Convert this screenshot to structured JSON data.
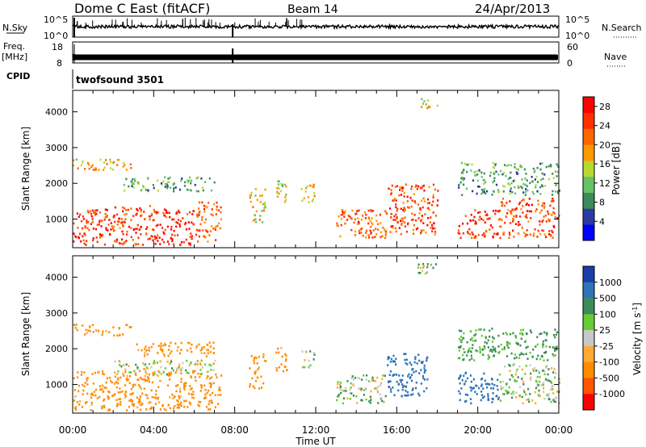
{
  "header": {
    "station": "Dome C East (fitACF)",
    "beam": "Beam 14",
    "date": "24/Apr/2013"
  },
  "ancillary": {
    "nsky_label": "N.Sky",
    "nsky_ticks": [
      "10^5",
      "10^0"
    ],
    "nsearch_label": "N.Search",
    "nsearch_ticks": [
      "10^5",
      "10^0"
    ],
    "freq_label_1": "Freq.",
    "freq_label_2": "[MHz]",
    "freq_ticks": [
      "18",
      "8"
    ],
    "nave_label": "Nave",
    "nave_ticks": [
      "60",
      "0"
    ],
    "cpid_label": "CPID",
    "cpid_value": "twofsound 3501"
  },
  "colors": {
    "power_scale": [
      "#0000ff",
      "#2a3aa0",
      "#3d8a5a",
      "#66c266",
      "#b8d830",
      "#ff9900",
      "#ff6600",
      "#ff3000",
      "#ff0000"
    ],
    "velocity_scale": [
      "#1a3da8",
      "#2f73b8",
      "#3d8a5a",
      "#66cc33",
      "#c8c8c8",
      "#ffaa33",
      "#ff8c00",
      "#ff5500",
      "#ff0000"
    ]
  },
  "chart_data": [
    {
      "type": "heatmap",
      "panel": "power",
      "ylabel": "Slant Range [km]",
      "xlabel": "",
      "yticks": [
        "1000",
        "2000",
        "3000",
        "4000"
      ],
      "ylim": [
        200,
        4600
      ],
      "colorbar_label": "Power [dB]",
      "colorbar_ticks": [
        "4",
        "8",
        "12",
        "16",
        "20",
        "24",
        "28"
      ],
      "colorbar_range": [
        0,
        30
      ],
      "patches": [
        {
          "t0": 0.0,
          "t1": 2.0,
          "r0": 300,
          "r1": 1300,
          "value": 26
        },
        {
          "t0": 2.0,
          "t1": 4.0,
          "r0": 300,
          "r1": 1400,
          "value": 24
        },
        {
          "t0": 4.0,
          "t1": 6.0,
          "r0": 300,
          "r1": 1300,
          "value": 27
        },
        {
          "t0": 6.0,
          "t1": 7.3,
          "r0": 400,
          "r1": 1500,
          "value": 22
        },
        {
          "t0": 0.0,
          "t1": 3.0,
          "r0": 2400,
          "r1": 2700,
          "value": 18
        },
        {
          "t0": 2.5,
          "t1": 7.0,
          "r0": 1800,
          "r1": 2200,
          "value": 10
        },
        {
          "t0": 8.7,
          "t1": 9.5,
          "r0": 900,
          "r1": 1900,
          "value": 16
        },
        {
          "t0": 10.0,
          "t1": 10.6,
          "r0": 1400,
          "r1": 2100,
          "value": 14
        },
        {
          "t0": 11.2,
          "t1": 11.9,
          "r0": 1500,
          "r1": 2000,
          "value": 18
        },
        {
          "t0": 13.0,
          "t1": 15.5,
          "r0": 500,
          "r1": 1300,
          "value": 22
        },
        {
          "t0": 15.5,
          "t1": 18.0,
          "r0": 600,
          "r1": 2000,
          "value": 24
        },
        {
          "t0": 17.0,
          "t1": 18.0,
          "r0": 4100,
          "r1": 4400,
          "value": 16
        },
        {
          "t0": 19.0,
          "t1": 21.0,
          "r0": 500,
          "r1": 1300,
          "value": 26
        },
        {
          "t0": 21.0,
          "t1": 24.0,
          "r0": 500,
          "r1": 1600,
          "value": 24
        },
        {
          "t0": 19.0,
          "t1": 24.0,
          "r0": 1700,
          "r1": 2600,
          "value": 10
        }
      ]
    },
    {
      "type": "heatmap",
      "panel": "velocity",
      "ylabel": "Slant Range [km]",
      "xlabel": "Time UT",
      "xticks": [
        "00:00",
        "04:00",
        "08:00",
        "12:00",
        "16:00",
        "20:00",
        "00:00"
      ],
      "yticks": [
        "1000",
        "2000",
        "3000",
        "4000"
      ],
      "ylim": [
        200,
        4600
      ],
      "colorbar_label": "Velocity [m s^-1]",
      "colorbar_ticks": [
        "1000",
        "500",
        "100",
        "25",
        "-25",
        "-100",
        "-500",
        "-1000"
      ],
      "patches": [
        {
          "t0": 0.0,
          "t1": 7.3,
          "r0": 300,
          "r1": 1400,
          "value": -200
        },
        {
          "t0": 2.0,
          "t1": 7.0,
          "r0": 1300,
          "r1": 1700,
          "value": 0
        },
        {
          "t0": 0.0,
          "t1": 3.0,
          "r0": 2400,
          "r1": 2700,
          "value": -200
        },
        {
          "t0": 3.0,
          "t1": 7.0,
          "r0": 1800,
          "r1": 2200,
          "value": -150
        },
        {
          "t0": 8.7,
          "t1": 9.5,
          "r0": 900,
          "r1": 1900,
          "value": -300
        },
        {
          "t0": 10.0,
          "t1": 10.6,
          "r0": 1400,
          "r1": 2100,
          "value": -200
        },
        {
          "t0": 11.2,
          "t1": 11.9,
          "r0": 1500,
          "r1": 2000,
          "value": 60
        },
        {
          "t0": 13.0,
          "t1": 15.5,
          "r0": 500,
          "r1": 1300,
          "value": 50
        },
        {
          "t0": 15.5,
          "t1": 17.5,
          "r0": 700,
          "r1": 1900,
          "value": 800
        },
        {
          "t0": 17.0,
          "t1": 18.0,
          "r0": 4100,
          "r1": 4400,
          "value": 60
        },
        {
          "t0": 19.0,
          "t1": 21.0,
          "r0": 500,
          "r1": 1400,
          "value": 700
        },
        {
          "t0": 21.0,
          "t1": 24.0,
          "r0": 500,
          "r1": 1600,
          "value": 60
        },
        {
          "t0": 19.0,
          "t1": 24.0,
          "r0": 1700,
          "r1": 2600,
          "value": 150
        }
      ]
    }
  ]
}
